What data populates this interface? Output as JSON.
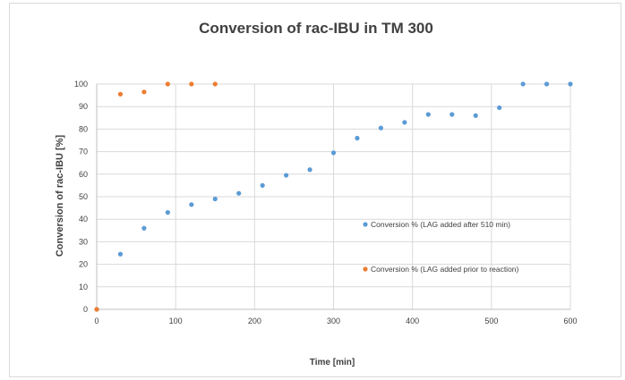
{
  "chart_data": {
    "type": "scatter",
    "title": "Conversion of rac-IBU in TM 300",
    "xlabel": "Time [min]",
    "ylabel": "Conversion of rac-IBU [%]",
    "xlim": [
      0,
      600
    ],
    "ylim": [
      0,
      100
    ],
    "x_ticks": [
      "0",
      "100",
      "200",
      "300",
      "400",
      "500",
      "600"
    ],
    "y_ticks": [
      "0",
      "10",
      "20",
      "30",
      "40",
      "50",
      "60",
      "70",
      "80",
      "90",
      "100"
    ],
    "grid": true,
    "series": [
      {
        "name": "Conversion % (LAG added after 510 min)",
        "color": "#5b9bd5",
        "points": [
          [
            0,
            0
          ],
          [
            30,
            24.5
          ],
          [
            60,
            36
          ],
          [
            90,
            43
          ],
          [
            120,
            46.5
          ],
          [
            150,
            49
          ],
          [
            180,
            51.5
          ],
          [
            210,
            55
          ],
          [
            240,
            59.5
          ],
          [
            270,
            62
          ],
          [
            300,
            69.5
          ],
          [
            330,
            76
          ],
          [
            360,
            80.5
          ],
          [
            390,
            83
          ],
          [
            420,
            86.5
          ],
          [
            450,
            86.5
          ],
          [
            480,
            86
          ],
          [
            510,
            89.5
          ],
          [
            540,
            100
          ],
          [
            570,
            100
          ],
          [
            600,
            100
          ]
        ]
      },
      {
        "name": "Conversion % (LAG added prior to reaction)",
        "color": "#ed7d31",
        "points": [
          [
            0,
            0
          ],
          [
            30,
            95.5
          ],
          [
            60,
            96.5
          ],
          [
            90,
            100
          ],
          [
            120,
            100
          ],
          [
            150,
            100
          ]
        ]
      }
    ]
  }
}
